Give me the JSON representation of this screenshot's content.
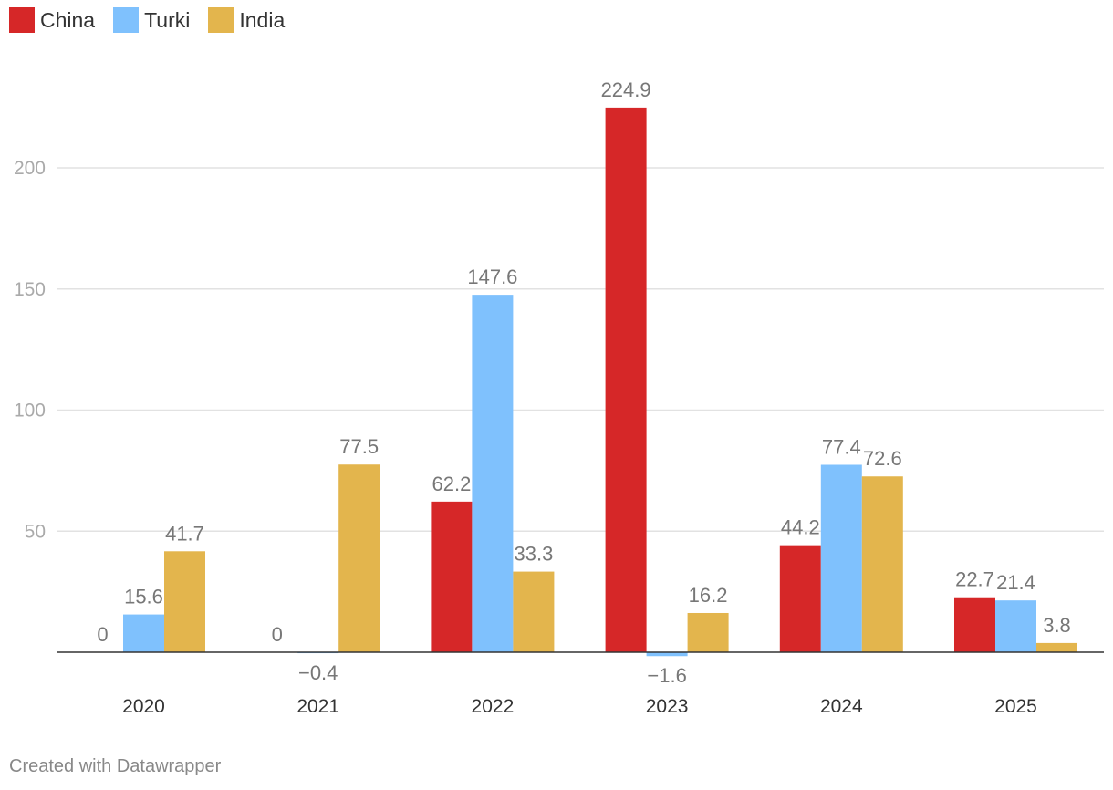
{
  "chart_data": {
    "type": "bar",
    "title": "",
    "xlabel": "",
    "ylabel": "",
    "categories": [
      "2020",
      "2021",
      "2022",
      "2023",
      "2024",
      "2025"
    ],
    "series": [
      {
        "name": "China",
        "color": "#d62728",
        "values": [
          0,
          0,
          62.2,
          224.9,
          44.2,
          22.7
        ]
      },
      {
        "name": "Turki",
        "color": "#7fc1fd",
        "values": [
          15.6,
          -0.4,
          147.6,
          -1.6,
          77.4,
          21.4
        ]
      },
      {
        "name": "India",
        "color": "#e3b54d",
        "values": [
          41.7,
          77.5,
          33.3,
          16.2,
          72.6,
          3.8
        ]
      }
    ],
    "labels": [
      [
        "0",
        "0",
        "62.2",
        "224.9",
        "44.2",
        "22.7"
      ],
      [
        "15.6",
        "−0.4",
        "147.6",
        "−1.6",
        "77.4",
        "21.4"
      ],
      [
        "41.7",
        "77.5",
        "33.3",
        "16.2",
        "72.6",
        "3.8"
      ]
    ],
    "yticks": [
      50,
      100,
      150,
      200
    ],
    "ylim": [
      -2,
      235
    ],
    "grid": true,
    "legend": "top-left"
  },
  "footer": {
    "credit": "Created with Datawrapper"
  }
}
